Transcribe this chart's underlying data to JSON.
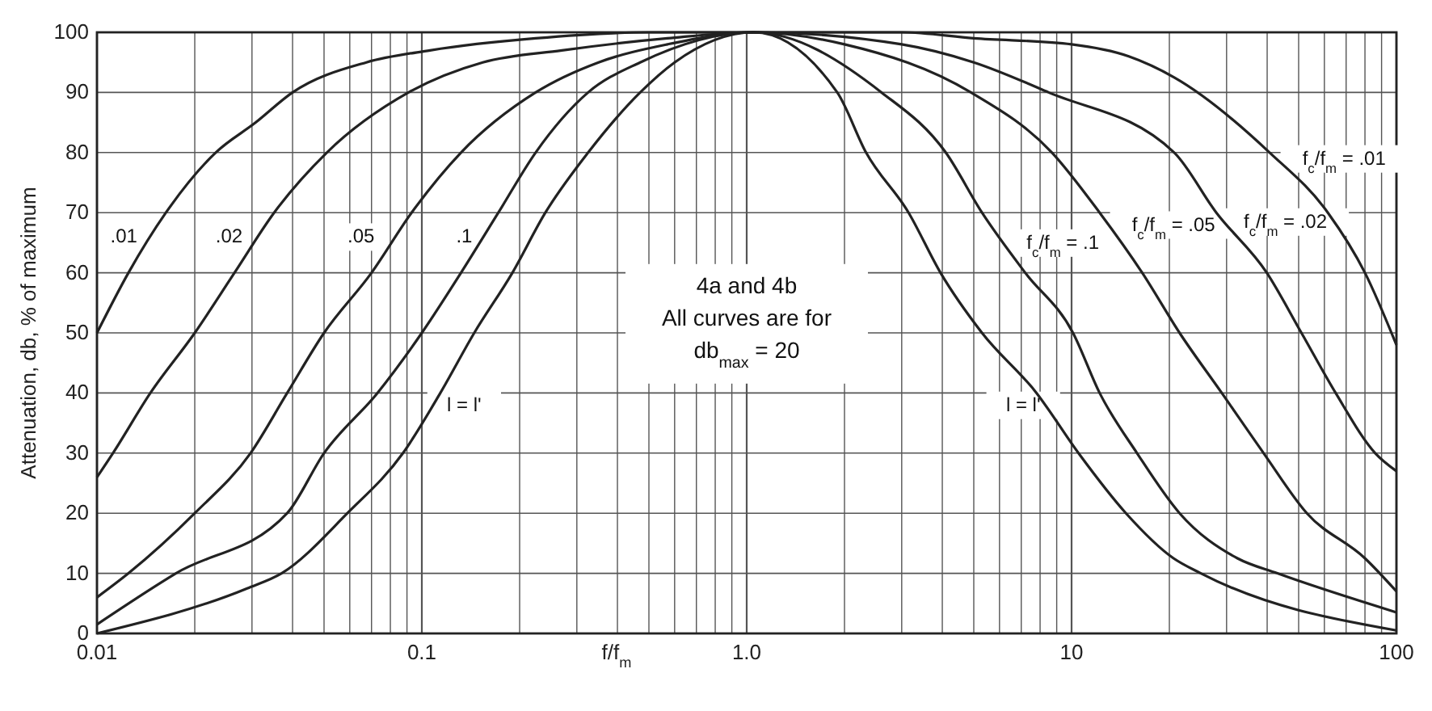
{
  "chart_data": {
    "type": "line",
    "xlabel": "f/f$_{m}$",
    "ylabel": "Attenuation, db, % of maximum",
    "xlim": [
      0.01,
      100
    ],
    "ylim": [
      0,
      100
    ],
    "log": "x",
    "grid": true,
    "marker": "none",
    "line_style": "solid",
    "xticks": [
      {
        "value": 0.01,
        "label": "0.01"
      },
      {
        "value": 0.02,
        "label": null
      },
      {
        "value": 0.03,
        "label": null
      },
      {
        "value": 0.04,
        "label": null
      },
      {
        "value": 0.05,
        "label": null
      },
      {
        "value": 0.06,
        "label": null
      },
      {
        "value": 0.07,
        "label": null
      },
      {
        "value": 0.08,
        "label": null
      },
      {
        "value": 0.09,
        "label": null
      },
      {
        "value": 0.1,
        "label": "0.1"
      },
      {
        "value": 0.2,
        "label": null
      },
      {
        "value": 0.3,
        "label": null
      },
      {
        "value": 0.4,
        "label": null
      },
      {
        "value": 0.5,
        "label": null
      },
      {
        "value": 0.6,
        "label": null
      },
      {
        "value": 0.7,
        "label": null
      },
      {
        "value": 0.8,
        "label": null
      },
      {
        "value": 0.9,
        "label": null
      },
      {
        "value": 1,
        "label": "1.0"
      },
      {
        "value": 2,
        "label": null
      },
      {
        "value": 3,
        "label": null
      },
      {
        "value": 4,
        "label": null
      },
      {
        "value": 5,
        "label": null
      },
      {
        "value": 6,
        "label": null
      },
      {
        "value": 7,
        "label": null
      },
      {
        "value": 8,
        "label": null
      },
      {
        "value": 9,
        "label": null
      },
      10,
      {
        "value": 20,
        "label": null
      },
      {
        "value": 30,
        "label": null
      },
      {
        "value": 40,
        "label": null
      },
      {
        "value": 50,
        "label": null
      },
      {
        "value": 60,
        "label": null
      },
      {
        "value": 70,
        "label": null
      },
      {
        "value": 80,
        "label": null
      },
      {
        "value": 90,
        "label": null
      },
      100
    ],
    "yticks": [
      0,
      10,
      20,
      30,
      40,
      50,
      60,
      70,
      80,
      90,
      100
    ],
    "series": [
      {
        "color": "#222222",
        "x": [
          0.01,
          0.0125,
          0.0163,
          0.0232,
          0.0308,
          0.04,
          0.0675,
          0.106,
          0.224,
          0.5,
          1.05,
          3,
          5,
          10,
          15,
          20.7,
          40.7,
          61.5,
          80,
          100
        ],
        "values": [
          50,
          60,
          70,
          80,
          85,
          90,
          95,
          97,
          99,
          100,
          100,
          100,
          99,
          98,
          96,
          92.5,
          80,
          70,
          60,
          48
        ]
      },
      {
        "color": "#222222",
        "x": [
          0.01,
          0.0112,
          0.0146,
          0.02,
          0.0265,
          0.0351,
          0.051,
          0.091,
          0.154,
          0.27,
          0.57,
          1.05,
          3,
          5,
          8.5,
          20.7,
          27.9,
          39.9,
          51,
          65,
          86,
          100
        ],
        "values": [
          26,
          30,
          40,
          50,
          60,
          70,
          80,
          90,
          95,
          97,
          99,
          100,
          98,
          95,
          90,
          80,
          70,
          60,
          50,
          40,
          30,
          27
        ]
      },
      {
        "color": "#222222",
        "x": [
          0.01,
          0.0125,
          0.02,
          0.0297,
          0.0385,
          0.05,
          0.07,
          0.093,
          0.132,
          0.224,
          0.35,
          0.57,
          1.05,
          2,
          4.9,
          8.7,
          12.2,
          16.5,
          21.5,
          29,
          39,
          53,
          80,
          100
        ],
        "values": [
          6,
          10,
          20,
          30,
          40,
          50,
          60,
          70,
          80,
          90,
          95,
          98,
          100,
          98,
          90,
          80,
          70,
          60,
          50,
          40,
          30,
          20,
          12.5,
          7
        ]
      },
      {
        "color": "#222222",
        "x": [
          0.01,
          0.0175,
          0.0385,
          0.05,
          0.073,
          0.1,
          0.132,
          0.172,
          0.224,
          0.325,
          0.47,
          1.05,
          2.6,
          4.1,
          5.3,
          7.2,
          10.1,
          12.2,
          15.9,
          21.5,
          32.4,
          43,
          100
        ],
        "values": [
          1.5,
          10,
          20,
          30,
          40,
          50,
          60,
          70,
          80,
          90,
          95,
          100,
          90,
          80,
          70,
          60,
          50,
          40,
          30,
          20,
          12.5,
          10,
          3.5
        ]
      },
      {
        "color": "#222222",
        "x": [
          0.01,
          0.029,
          0.037,
          0.059,
          0.0875,
          0.114,
          0.145,
          0.19,
          0.24,
          0.325,
          0.47,
          0.6,
          1.05,
          1.9,
          2.33,
          3.15,
          3.95,
          5.3,
          7.8,
          10.5,
          14.7,
          20.6,
          25,
          100
        ],
        "values": [
          0,
          7.5,
          10,
          20,
          30,
          40,
          50,
          60,
          70,
          80,
          90,
          95,
          100,
          90,
          80,
          70,
          60,
          50,
          40,
          30,
          20,
          12.5,
          10,
          0.5
        ]
      }
    ],
    "annotations": [
      ".01",
      ".02",
      ".05",
      ".1",
      "l = l'",
      "l = l'",
      "f$_{c}$/f$_{m}$ = .1",
      "f$_{c}$/f$_{m}$ = .05",
      "f$_{c}$/f$_{m}$ = .02",
      "f$_{c}$/f$_{m}$ = .01",
      "4a and 4b",
      "All curves are for",
      "db$_{max}$ = 20"
    ]
  }
}
